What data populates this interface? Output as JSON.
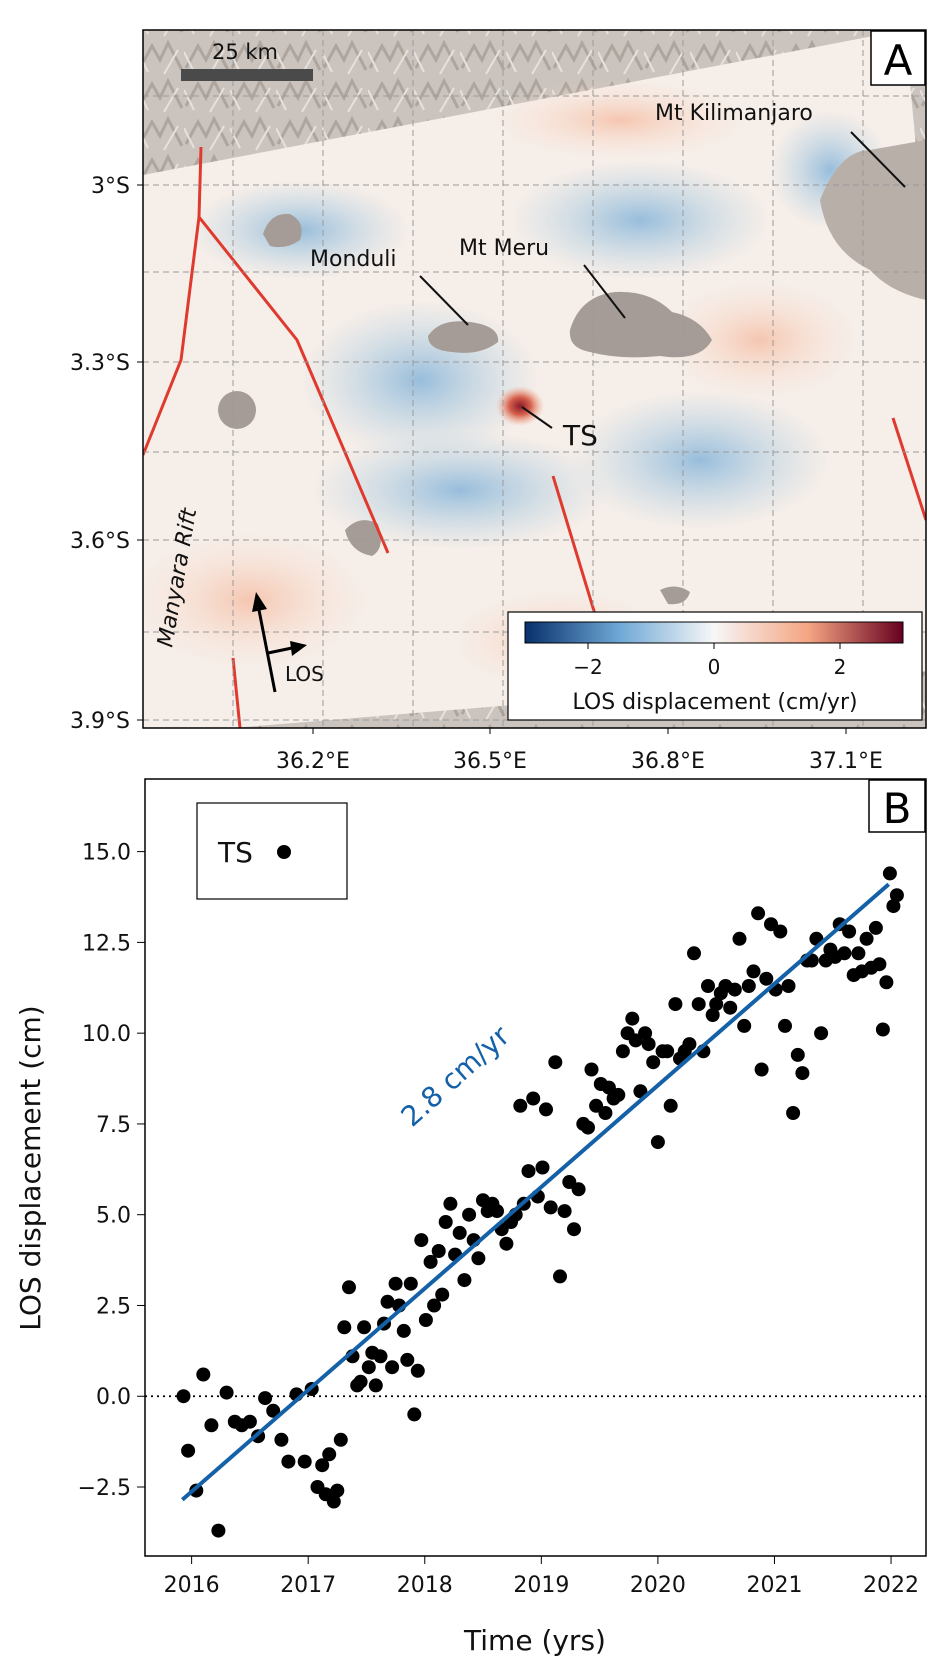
{
  "panel_a": {
    "label": "A",
    "scale_bar_label": "25 km",
    "lat_ticks": [
      {
        "value": -3.0,
        "label": "3°S"
      },
      {
        "value": -3.3,
        "label": "3.3°S"
      },
      {
        "value": -3.6,
        "label": "3.6°S"
      },
      {
        "value": -3.9,
        "label": "3.9°S"
      }
    ],
    "lon_ticks": [
      {
        "value": 36.2,
        "label": "36.2°E"
      },
      {
        "value": 36.5,
        "label": "36.5°E"
      },
      {
        "value": 36.8,
        "label": "36.8°E"
      },
      {
        "value": 37.1,
        "label": "37.1°E"
      }
    ],
    "places": {
      "kilimanjaro": "Mt Kilimanjaro",
      "meru": "Mt Meru",
      "monduli": "Monduli",
      "ts": "TS",
      "manyara": "Manyara Rift"
    },
    "los_label": "LOS",
    "colorbar": {
      "label": "LOS displacement (cm/yr)",
      "range": [
        -3,
        3
      ],
      "ticks": [
        "−2",
        "0",
        "2"
      ],
      "colors": [
        "#08306b",
        "#6fa8d6",
        "#f7f7f7",
        "#f4a582",
        "#67001f"
      ]
    },
    "fault_color": "#e03a2f"
  },
  "panel_b": {
    "label": "B",
    "legend_label": "TS",
    "xlabel": "Time (yrs)",
    "ylabel": "LOS displacement (cm)",
    "trend_label": "2.8 cm/yr",
    "trend_color": "#1461a8",
    "chart_data": {
      "type": "scatter",
      "xlim": [
        2015.6,
        2022.3
      ],
      "ylim": [
        -4.4,
        17.0
      ],
      "x_ticks": [
        2016,
        2017,
        2018,
        2019,
        2020,
        2021,
        2022
      ],
      "y_ticks": [
        -2.5,
        0.0,
        2.5,
        5.0,
        7.5,
        10.0,
        12.5,
        15.0
      ],
      "y_tick_labels": [
        "−2.5",
        "0.0",
        "2.5",
        "5.0",
        "7.5",
        "10.0",
        "12.5",
        "15.0"
      ],
      "trend": {
        "x": [
          2015.92,
          2021.98
        ],
        "y": [
          -2.85,
          14.1
        ]
      },
      "zero_line": 0,
      "series": [
        {
          "points": [
            [
              2015.93,
              0.0
            ],
            [
              2015.97,
              -1.5
            ],
            [
              2016.04,
              -2.6
            ],
            [
              2016.1,
              0.6
            ],
            [
              2016.17,
              -0.8
            ],
            [
              2016.23,
              -3.7
            ],
            [
              2016.3,
              0.1
            ],
            [
              2016.37,
              -0.7
            ],
            [
              2016.43,
              -0.8
            ],
            [
              2016.5,
              -0.7
            ],
            [
              2016.57,
              -1.1
            ],
            [
              2016.63,
              -0.05
            ],
            [
              2016.7,
              -0.4
            ],
            [
              2016.77,
              -1.2
            ],
            [
              2016.83,
              -1.8
            ],
            [
              2016.9,
              0.05
            ],
            [
              2016.97,
              -1.8
            ],
            [
              2017.03,
              0.2
            ],
            [
              2017.08,
              -2.5
            ],
            [
              2017.12,
              -1.9
            ],
            [
              2017.15,
              -2.7
            ],
            [
              2017.18,
              -1.6
            ],
            [
              2017.22,
              -2.9
            ],
            [
              2017.25,
              -2.6
            ],
            [
              2017.28,
              -1.2
            ],
            [
              2017.31,
              1.9
            ],
            [
              2017.35,
              3.0
            ],
            [
              2017.38,
              1.1
            ],
            [
              2017.42,
              0.3
            ],
            [
              2017.45,
              0.4
            ],
            [
              2017.48,
              1.9
            ],
            [
              2017.52,
              0.8
            ],
            [
              2017.55,
              1.2
            ],
            [
              2017.58,
              0.3
            ],
            [
              2017.62,
              1.1
            ],
            [
              2017.65,
              2.0
            ],
            [
              2017.68,
              2.6
            ],
            [
              2017.72,
              0.8
            ],
            [
              2017.75,
              3.1
            ],
            [
              2017.78,
              2.5
            ],
            [
              2017.82,
              1.8
            ],
            [
              2017.85,
              1.0
            ],
            [
              2017.88,
              3.1
            ],
            [
              2017.91,
              -0.5
            ],
            [
              2017.94,
              0.7
            ],
            [
              2017.97,
              4.3
            ],
            [
              2018.01,
              2.1
            ],
            [
              2018.05,
              3.7
            ],
            [
              2018.08,
              2.5
            ],
            [
              2018.12,
              4.0
            ],
            [
              2018.15,
              2.8
            ],
            [
              2018.18,
              4.8
            ],
            [
              2018.22,
              5.3
            ],
            [
              2018.26,
              3.9
            ],
            [
              2018.3,
              4.5
            ],
            [
              2018.34,
              3.2
            ],
            [
              2018.38,
              5.0
            ],
            [
              2018.42,
              4.3
            ],
            [
              2018.46,
              3.8
            ],
            [
              2018.5,
              5.4
            ],
            [
              2018.54,
              5.1
            ],
            [
              2018.58,
              5.3
            ],
            [
              2018.62,
              5.1
            ],
            [
              2018.66,
              4.6
            ],
            [
              2018.7,
              4.2
            ],
            [
              2018.74,
              4.8
            ],
            [
              2018.78,
              5.0
            ],
            [
              2018.82,
              8.0
            ],
            [
              2018.85,
              5.3
            ],
            [
              2018.89,
              6.2
            ],
            [
              2018.93,
              8.2
            ],
            [
              2018.97,
              5.5
            ],
            [
              2019.01,
              6.3
            ],
            [
              2019.04,
              7.9
            ],
            [
              2019.08,
              5.2
            ],
            [
              2019.12,
              9.2
            ],
            [
              2019.16,
              3.3
            ],
            [
              2019.2,
              5.1
            ],
            [
              2019.24,
              5.9
            ],
            [
              2019.28,
              4.6
            ],
            [
              2019.32,
              5.7
            ],
            [
              2019.36,
              7.5
            ],
            [
              2019.4,
              7.4
            ],
            [
              2019.43,
              9.0
            ],
            [
              2019.47,
              8.0
            ],
            [
              2019.51,
              8.6
            ],
            [
              2019.55,
              7.8
            ],
            [
              2019.58,
              8.5
            ],
            [
              2019.62,
              8.2
            ],
            [
              2019.66,
              8.3
            ],
            [
              2019.7,
              9.5
            ],
            [
              2019.74,
              10.0
            ],
            [
              2019.78,
              10.4
            ],
            [
              2019.81,
              9.8
            ],
            [
              2019.85,
              8.4
            ],
            [
              2019.89,
              10.0
            ],
            [
              2019.92,
              9.7
            ],
            [
              2019.96,
              9.2
            ],
            [
              2020.0,
              7.0
            ],
            [
              2020.04,
              9.5
            ],
            [
              2020.08,
              9.5
            ],
            [
              2020.11,
              8.0
            ],
            [
              2020.15,
              10.8
            ],
            [
              2020.19,
              9.3
            ],
            [
              2020.23,
              9.5
            ],
            [
              2020.27,
              9.7
            ],
            [
              2020.31,
              12.2
            ],
            [
              2020.35,
              10.8
            ],
            [
              2020.39,
              9.5
            ],
            [
              2020.43,
              11.3
            ],
            [
              2020.47,
              10.5
            ],
            [
              2020.5,
              10.8
            ],
            [
              2020.54,
              11.1
            ],
            [
              2020.58,
              11.3
            ],
            [
              2020.62,
              10.7
            ],
            [
              2020.66,
              11.2
            ],
            [
              2020.7,
              12.6
            ],
            [
              2020.74,
              10.2
            ],
            [
              2020.78,
              11.3
            ],
            [
              2020.82,
              11.7
            ],
            [
              2020.86,
              13.3
            ],
            [
              2020.89,
              9.0
            ],
            [
              2020.93,
              11.5
            ],
            [
              2020.97,
              13.0
            ],
            [
              2021.01,
              11.2
            ],
            [
              2021.05,
              12.8
            ],
            [
              2021.09,
              10.2
            ],
            [
              2021.12,
              11.3
            ],
            [
              2021.16,
              7.8
            ],
            [
              2021.2,
              9.4
            ],
            [
              2021.24,
              8.9
            ],
            [
              2021.28,
              12.0
            ],
            [
              2021.32,
              12.0
            ],
            [
              2021.36,
              12.6
            ],
            [
              2021.4,
              10.0
            ],
            [
              2021.44,
              12.0
            ],
            [
              2021.48,
              12.3
            ],
            [
              2021.52,
              12.1
            ],
            [
              2021.56,
              13.0
            ],
            [
              2021.6,
              12.2
            ],
            [
              2021.64,
              12.8
            ],
            [
              2021.68,
              11.6
            ],
            [
              2021.72,
              12.2
            ],
            [
              2021.75,
              11.7
            ],
            [
              2021.79,
              12.6
            ],
            [
              2021.83,
              11.8
            ],
            [
              2021.87,
              12.9
            ],
            [
              2021.9,
              11.9
            ],
            [
              2021.93,
              10.1
            ],
            [
              2021.96,
              11.4
            ],
            [
              2021.99,
              14.4
            ],
            [
              2022.02,
              13.5
            ],
            [
              2022.05,
              13.8
            ]
          ]
        }
      ]
    }
  }
}
